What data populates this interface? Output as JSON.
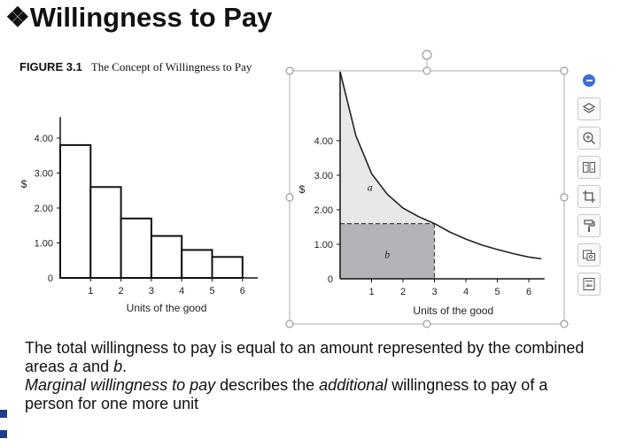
{
  "slide": {
    "title": "Willingness to Pay",
    "title_bullet": "❖"
  },
  "figure": {
    "number": "FIGURE 3.1",
    "caption": "The Concept of Willingness to Pay"
  },
  "chart_data": [
    {
      "type": "bar",
      "categories": [
        "1",
        "2",
        "3",
        "4",
        "5",
        "6"
      ],
      "values": [
        3.8,
        2.6,
        1.7,
        1.2,
        0.8,
        0.6
      ],
      "ylabel": "$",
      "xlabel": "Units of the good",
      "y_ticks": [
        "0",
        "1.00",
        "2.00",
        "3.00",
        "4.00"
      ],
      "x_ticks": [
        "1",
        "2",
        "3",
        "4",
        "5",
        "6"
      ],
      "ylim": [
        0,
        4.6
      ],
      "xlim": [
        0,
        6.5
      ]
    },
    {
      "type": "area",
      "xlabel": "Units of the good",
      "ylabel": "$",
      "y_ticks": [
        "0",
        "1.00",
        "2.00",
        "3.00",
        "4.00"
      ],
      "x_ticks": [
        "1",
        "2",
        "3",
        "4",
        "5",
        "6"
      ],
      "curve": {
        "x": [
          0,
          0.5,
          1,
          1.5,
          2,
          2.5,
          3,
          3.5,
          4,
          4.5,
          5,
          5.5,
          6,
          6.4
        ],
        "y": [
          6.0,
          4.15,
          3.05,
          2.45,
          2.05,
          1.8,
          1.6,
          1.35,
          1.15,
          0.98,
          0.85,
          0.73,
          0.63,
          0.58
        ]
      },
      "quantity": 3,
      "price": 1.6,
      "area_labels": {
        "a": "a",
        "b": "b"
      },
      "ylim": [
        0,
        6.0
      ],
      "xlim": [
        0,
        6.5
      ]
    }
  ],
  "body": {
    "line1": "The total willingness to pay is equal to an amount represented by the combined areas ",
    "area_a": "a",
    "and": " and ",
    "area_b": "b",
    "period": ".",
    "marginal_italic": "Marginal willingness to pay",
    "marginal_rest1": " describes the ",
    "additional_italic": "additional",
    "marginal_rest2": " willingness to pay of a person for one more unit"
  },
  "toolbar": {
    "icons": [
      "layers-icon",
      "zoom-in-icon",
      "image-compare-icon",
      "crop-icon",
      "format-painter-icon",
      "screenshot-icon",
      "image-text-icon"
    ]
  },
  "colors": {
    "area_a": "#e8e8ea",
    "area_b": "#b4b4b8",
    "toolbar_accent": "#3b6fd8",
    "bullet": "#1f3d8c"
  }
}
